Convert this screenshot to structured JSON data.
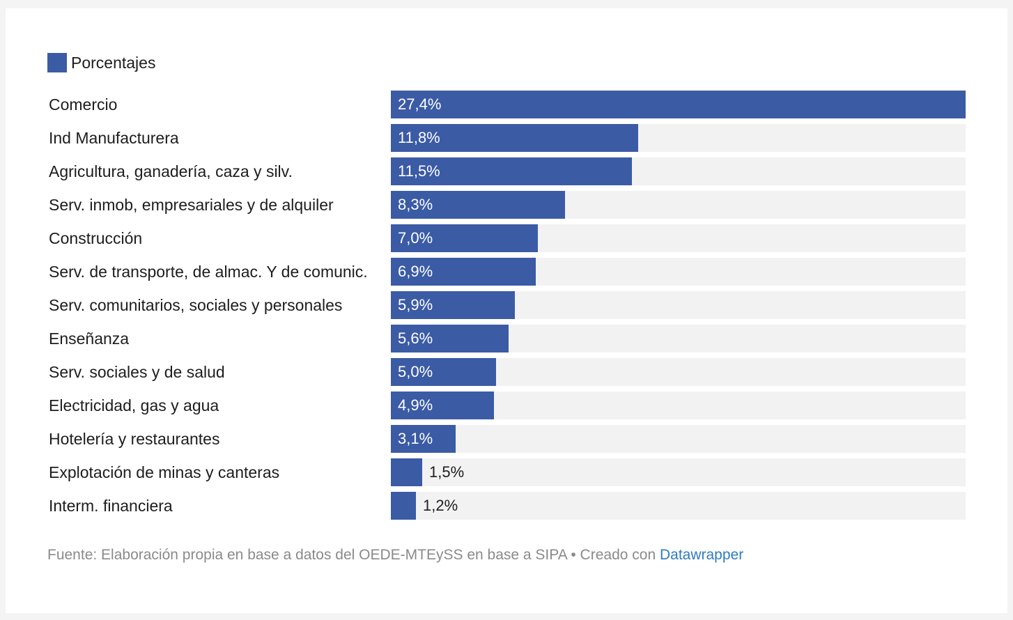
{
  "colors": {
    "bar": "#3b5ba5",
    "track": "#f2f2f2"
  },
  "legend": {
    "label": "Porcentajes"
  },
  "chart_data": {
    "type": "bar",
    "orientation": "horizontal",
    "xlim": [
      0,
      27.4
    ],
    "series": [
      {
        "name": "Porcentajes"
      }
    ],
    "categories": [
      "Comercio",
      "Ind Manufacturera",
      "Agricultura, ganadería, caza y silv.",
      "Serv. inmob, empresariales y de alquiler",
      "Construcción",
      "Serv. de transporte, de almac. Y de comunic.",
      "Serv. comunitarios, sociales y personales",
      "Enseñanza",
      "Serv. sociales y de salud",
      "Electricidad, gas y agua",
      "Hotelería y restaurantes",
      "Explotación de minas y canteras",
      "Interm. financiera"
    ],
    "values": [
      27.4,
      11.8,
      11.5,
      8.3,
      7.0,
      6.9,
      5.9,
      5.6,
      5.0,
      4.9,
      3.1,
      1.5,
      1.2
    ],
    "value_labels": [
      "27,4%",
      "11,8%",
      "11,5%",
      "8,3%",
      "7,0%",
      "6,9%",
      "5,9%",
      "5,6%",
      "5,0%",
      "4,9%",
      "3,1%",
      "1,5%",
      "1,2%"
    ]
  },
  "footer": {
    "source": "Fuente: Elaboración propia en base a datos del OEDE-MTEySS en base a SIPA • Creado con ",
    "link": "Datawrapper"
  }
}
